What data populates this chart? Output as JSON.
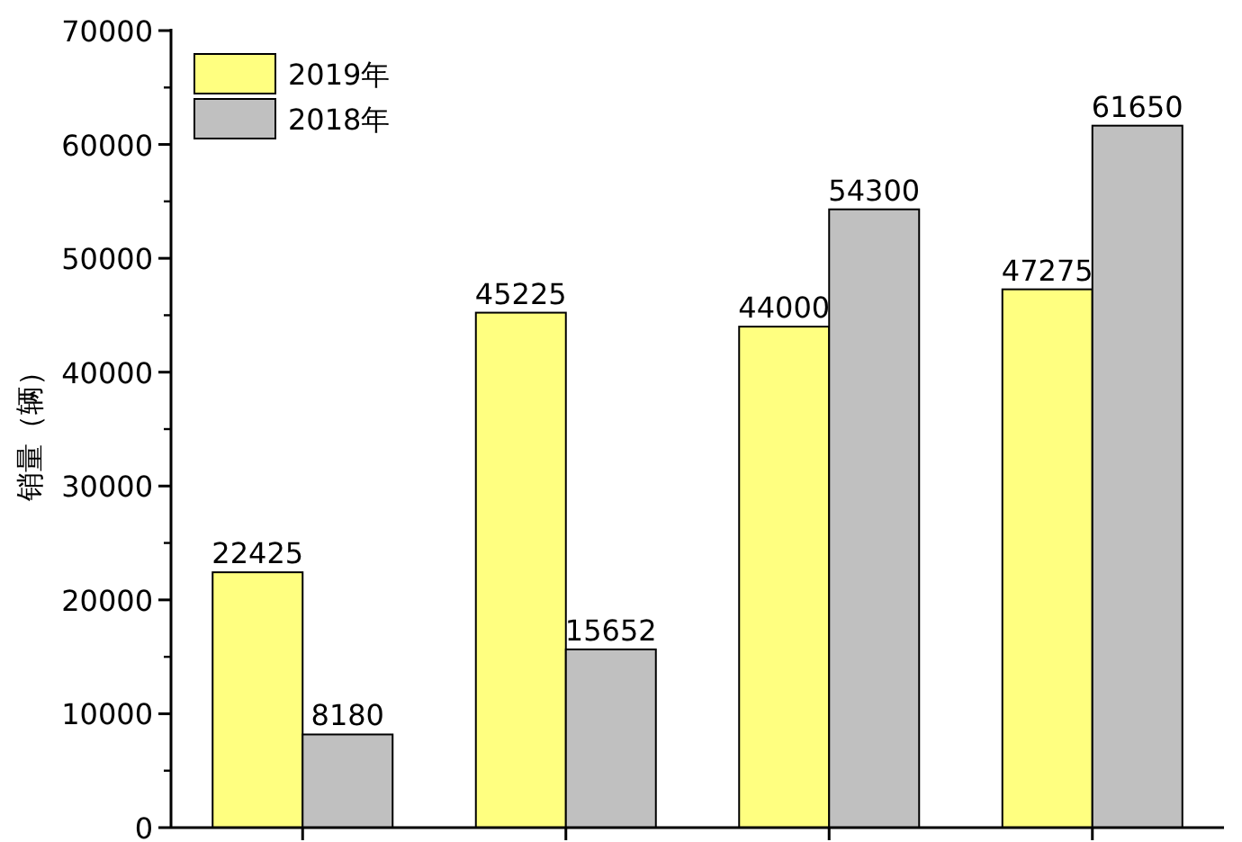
{
  "chart_data": {
    "type": "bar",
    "ylabel": "销量（辆）",
    "categories": [
      null,
      null,
      null,
      null
    ],
    "series": [
      {
        "name": "2019年",
        "color": "#ffff80",
        "values": [
          22425,
          45225,
          44000,
          47275
        ]
      },
      {
        "name": "2018年",
        "color": "#c0c0c0",
        "values": [
          8180,
          15652,
          54300,
          61650
        ]
      }
    ],
    "ylim": [
      0,
      70000
    ],
    "yticks": [
      0,
      10000,
      20000,
      30000,
      40000,
      50000,
      60000,
      70000
    ],
    "data_labels": true,
    "legend": "top left",
    "grid": false
  }
}
